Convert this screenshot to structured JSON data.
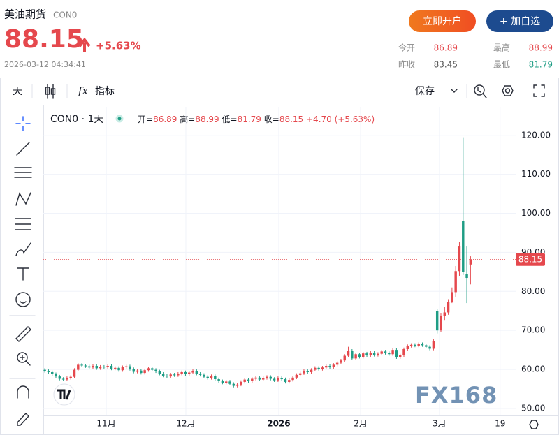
{
  "header": {
    "title": "美油期货",
    "code": "CON0",
    "price": "88.15",
    "change_pct": "+5.63%",
    "timestamp": "2026-03-12 04:34:41",
    "buttons": [
      "立即开户",
      "+ 加自选"
    ],
    "stats": [
      {
        "label": "今开",
        "value": "86.89"
      },
      {
        "label": "最高",
        "value": "88.99"
      },
      {
        "label": "昨收",
        "value": "83.45"
      },
      {
        "label": "最低",
        "value": "81.79"
      }
    ]
  },
  "toolbar": {
    "interval": "天",
    "fx": "fx",
    "indicators": "指标",
    "save": "保存"
  },
  "legend": {
    "symbol": "CON0 · 1天",
    "items": [
      {
        "label": "开=",
        "value": "86.89"
      },
      {
        "label": "高=",
        "value": "88.99"
      },
      {
        "label": "低=",
        "value": "81.79"
      },
      {
        "label": "收=",
        "value": "88.15"
      }
    ],
    "change": "+4.70 (+5.63%)"
  },
  "watermark": "FX168",
  "chart_data": {
    "type": "candlestick",
    "up_color": "#e5484d",
    "down_color": "#1f9d85",
    "grid": true,
    "x": [
      0,
      1,
      2,
      3,
      4,
      5,
      6,
      7,
      8,
      9,
      10,
      11,
      12,
      13,
      14,
      15,
      16,
      17,
      18,
      19,
      20,
      21,
      22,
      23,
      24,
      25,
      26,
      27,
      28,
      29,
      30,
      31,
      32,
      33,
      34,
      35,
      36,
      37,
      38,
      39,
      40,
      41,
      42,
      43,
      44,
      45,
      46,
      47,
      48,
      49,
      50,
      51,
      52,
      53,
      54,
      55,
      56,
      57,
      58,
      59,
      60,
      61,
      62,
      63,
      64,
      65,
      66,
      67,
      68,
      69,
      70,
      71,
      72,
      73,
      74,
      75,
      76,
      77,
      78,
      79,
      80,
      81,
      82,
      83,
      84,
      85,
      86,
      87,
      88,
      89,
      90,
      91,
      92,
      93,
      94,
      95,
      96,
      97,
      98,
      99,
      100,
      101,
      102,
      103,
      104,
      105,
      106,
      107,
      108,
      109,
      110,
      111,
      112,
      113,
      114,
      115
    ],
    "open": [
      59.9,
      59.6,
      59.3,
      58.8,
      58.2,
      57.6,
      57.4,
      57.8,
      58.1,
      59.9,
      61.2,
      61.0,
      60.8,
      60.5,
      60.9,
      60.3,
      60.7,
      60.6,
      60.9,
      60.2,
      60.4,
      59.8,
      60.6,
      60.8,
      60.1,
      59.4,
      59.7,
      59.1,
      59.8,
      60.3,
      59.9,
      59.5,
      58.9,
      58.4,
      58.2,
      58.7,
      58.5,
      58.9,
      59.3,
      58.8,
      59.2,
      59.6,
      58.9,
      58.6,
      58.1,
      57.8,
      58.3,
      57.5,
      57.0,
      56.6,
      56.9,
      56.3,
      55.8,
      56.1,
      56.8,
      57.4,
      57.0,
      57.6,
      57.9,
      57.4,
      57.8,
      58.1,
      57.6,
      57.2,
      57.8,
      57.5,
      56.8,
      57.3,
      57.9,
      58.6,
      59.0,
      59.6,
      59.3,
      59.9,
      60.4,
      60.1,
      60.5,
      60.9,
      60.6,
      61.2,
      61.7,
      62.3,
      63.5,
      64.8,
      62.8,
      63.9,
      63.2,
      64.1,
      63.6,
      64.3,
      63.7,
      64.0,
      64.6,
      64.2,
      63.9,
      65.0,
      63.1,
      63.6,
      65.2,
      66.0,
      66.3,
      66.1,
      66.5,
      66.2,
      65.8,
      65.3,
      75.0,
      70.0,
      73.8,
      74.6,
      77.2,
      79.8,
      85.2,
      98.0,
      84.5,
      86.89
    ],
    "high": [
      60.3,
      60.0,
      59.7,
      59.2,
      58.6,
      58.0,
      58.2,
      58.5,
      60.3,
      61.6,
      61.6,
      61.4,
      61.2,
      61.3,
      61.3,
      61.1,
      61.1,
      61.3,
      61.3,
      60.8,
      60.8,
      61.0,
      61.2,
      61.2,
      60.5,
      60.1,
      60.1,
      60.2,
      60.7,
      60.7,
      60.3,
      59.9,
      59.3,
      58.8,
      59.1,
      59.1,
      59.3,
      59.7,
      59.7,
      59.6,
      60.0,
      60.0,
      59.3,
      59.0,
      58.5,
      58.7,
      58.7,
      57.9,
      57.4,
      57.3,
      57.3,
      56.7,
      56.5,
      57.2,
      57.8,
      57.8,
      58.0,
      58.3,
      58.3,
      58.2,
      58.5,
      58.5,
      58.0,
      58.2,
      58.2,
      57.9,
      57.7,
      58.3,
      59.0,
      59.4,
      60.0,
      60.0,
      60.3,
      60.8,
      60.8,
      60.9,
      61.3,
      61.3,
      61.6,
      62.1,
      62.7,
      63.9,
      65.8,
      65.2,
      64.3,
      64.3,
      64.5,
      64.5,
      64.7,
      64.7,
      64.4,
      65.0,
      65.0,
      64.6,
      65.4,
      65.4,
      64.0,
      65.6,
      66.4,
      66.7,
      66.7,
      66.9,
      66.9,
      66.6,
      66.2,
      67.7,
      75.4,
      74.5,
      76.0,
      78.0,
      81.0,
      86.5,
      92.7,
      119.5,
      91.5,
      88.99
    ],
    "low": [
      59.2,
      58.9,
      58.4,
      57.8,
      57.2,
      57.0,
      57.0,
      57.4,
      57.7,
      59.5,
      60.6,
      60.4,
      60.1,
      60.1,
      59.9,
      59.9,
      60.2,
      60.2,
      59.8,
      59.8,
      59.4,
      59.4,
      60.2,
      59.7,
      59.0,
      59.0,
      58.7,
      58.7,
      59.4,
      59.5,
      59.1,
      58.5,
      58.0,
      57.8,
      57.8,
      58.1,
      58.1,
      58.5,
      58.4,
      58.4,
      58.8,
      58.5,
      58.2,
      57.7,
      57.4,
      57.4,
      57.1,
      56.6,
      56.2,
      56.2,
      55.9,
      55.4,
      55.4,
      55.7,
      56.4,
      56.6,
      56.6,
      57.2,
      57.0,
      57.0,
      57.4,
      57.2,
      56.8,
      56.8,
      57.1,
      56.4,
      56.4,
      56.9,
      57.5,
      58.2,
      58.6,
      58.9,
      58.9,
      59.5,
      59.7,
      59.7,
      60.1,
      60.2,
      60.2,
      60.8,
      61.3,
      61.9,
      63.1,
      62.4,
      62.4,
      62.8,
      62.8,
      63.2,
      63.2,
      63.3,
      63.3,
      63.6,
      63.8,
      63.5,
      63.5,
      62.7,
      62.7,
      63.2,
      64.8,
      65.6,
      65.7,
      65.7,
      65.8,
      65.4,
      64.9,
      64.9,
      69.2,
      69.5,
      72.5,
      74.0,
      77.0,
      78.5,
      84.0,
      84.2,
      77.0,
      81.79
    ],
    "close": [
      59.6,
      59.3,
      58.8,
      58.2,
      57.6,
      57.4,
      57.8,
      58.1,
      59.9,
      61.2,
      61.0,
      60.8,
      60.5,
      60.9,
      60.3,
      60.7,
      60.6,
      60.9,
      60.2,
      60.4,
      59.8,
      60.6,
      60.8,
      60.1,
      59.4,
      59.7,
      59.1,
      59.8,
      60.3,
      59.9,
      59.5,
      58.9,
      58.4,
      58.2,
      58.7,
      58.5,
      58.9,
      59.3,
      58.8,
      59.2,
      59.6,
      58.9,
      58.6,
      58.1,
      57.8,
      58.3,
      57.5,
      57.0,
      56.6,
      56.9,
      56.3,
      55.8,
      56.1,
      56.8,
      57.4,
      57.0,
      57.6,
      57.9,
      57.4,
      57.8,
      58.1,
      57.6,
      57.2,
      57.8,
      57.5,
      56.8,
      57.3,
      57.9,
      58.6,
      59.0,
      59.6,
      59.3,
      59.9,
      60.4,
      60.1,
      60.5,
      60.9,
      60.6,
      61.2,
      61.7,
      62.3,
      63.5,
      64.8,
      62.8,
      63.9,
      63.2,
      64.1,
      63.6,
      64.3,
      63.7,
      64.0,
      64.6,
      64.2,
      63.9,
      65.0,
      63.1,
      63.6,
      65.2,
      66.0,
      66.3,
      66.1,
      66.5,
      66.2,
      65.8,
      65.3,
      67.3,
      70.0,
      73.8,
      74.6,
      77.2,
      79.8,
      85.2,
      91.5,
      85.0,
      83.45,
      88.15
    ],
    "last_price": {
      "value": 88.15,
      "label": "88.15"
    },
    "xlim": [
      -0.4,
      127.2
    ],
    "xticks": [
      {
        "value": 16.6,
        "label": "11月"
      },
      {
        "value": 38.1,
        "label": "12月"
      },
      {
        "value": 63.2,
        "label": "2026"
      },
      {
        "value": 85.3,
        "label": "2月"
      },
      {
        "value": 106.6,
        "label": "3月"
      },
      {
        "value": 123,
        "label": "19"
      }
    ],
    "ylim": [
      48.2,
      127.3
    ],
    "yticks": [
      {
        "value": 50,
        "label": "50.00"
      },
      {
        "value": 60,
        "label": "60.00"
      },
      {
        "value": 70,
        "label": "70.00"
      },
      {
        "value": 80,
        "label": "80.00"
      },
      {
        "value": 90,
        "label": "90.00"
      },
      {
        "value": 100,
        "label": "100.00"
      },
      {
        "value": 110,
        "label": "110.00"
      },
      {
        "value": 120,
        "label": "120.00"
      }
    ]
  }
}
